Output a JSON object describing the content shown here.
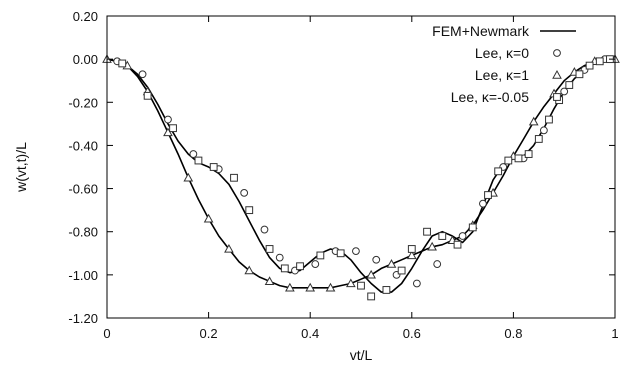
{
  "chart_data": {
    "type": "line",
    "title": "",
    "xlabel": "vt/L",
    "ylabel": "w(vt,t)/L",
    "xlim": [
      0,
      1
    ],
    "ylim": [
      -1.2,
      0.2
    ],
    "grid": false,
    "legend_position": "top-right",
    "x_ticks": [
      0,
      0.2,
      0.4,
      0.6,
      0.8,
      1
    ],
    "x_tick_labels": [
      "0",
      "0.2",
      "0.4",
      "0.6",
      "0.8",
      "1"
    ],
    "y_ticks": [
      0.2,
      0.0,
      -0.2,
      -0.4,
      -0.6,
      -0.8,
      -1.0,
      -1.2
    ],
    "y_tick_labels": [
      "0.20",
      "0.00",
      "-0.20",
      "-0.40",
      "-0.60",
      "-0.80",
      "-1.00",
      "-1.20"
    ],
    "series": [
      {
        "name": "FEM+Newmark",
        "marker": "none",
        "color": "#000000",
        "curves": [
          {
            "x": [
              0,
              0.02,
              0.04,
              0.06,
              0.08,
              0.1,
              0.12,
              0.14,
              0.16,
              0.18,
              0.2,
              0.22,
              0.24,
              0.26,
              0.28,
              0.3,
              0.32,
              0.34,
              0.36,
              0.38,
              0.4,
              0.42,
              0.44,
              0.46,
              0.48,
              0.5,
              0.52,
              0.54,
              0.56,
              0.58,
              0.6,
              0.62,
              0.64,
              0.66,
              0.68,
              0.7,
              0.72,
              0.74,
              0.76,
              0.78,
              0.8,
              0.82,
              0.84,
              0.86,
              0.88,
              0.9,
              0.92,
              0.94,
              0.96,
              0.98,
              1
            ],
            "y": [
              0,
              -0.01,
              -0.03,
              -0.07,
              -0.13,
              -0.21,
              -0.3,
              -0.38,
              -0.44,
              -0.48,
              -0.5,
              -0.53,
              -0.58,
              -0.66,
              -0.75,
              -0.84,
              -0.92,
              -0.97,
              -0.99,
              -0.98,
              -0.94,
              -0.9,
              -0.88,
              -0.89,
              -0.93,
              -0.99,
              -1.04,
              -1.08,
              -1.08,
              -1.04,
              -0.97,
              -0.89,
              -0.82,
              -0.8,
              -0.82,
              -0.85,
              -0.8,
              -0.68,
              -0.56,
              -0.49,
              -0.46,
              -0.45,
              -0.4,
              -0.32,
              -0.23,
              -0.15,
              -0.09,
              -0.05,
              -0.02,
              -0.01,
              0
            ]
          },
          {
            "x": [
              0,
              0.02,
              0.04,
              0.06,
              0.08,
              0.1,
              0.12,
              0.14,
              0.16,
              0.18,
              0.2,
              0.22,
              0.24,
              0.26,
              0.28,
              0.3,
              0.32,
              0.34,
              0.36,
              0.38,
              0.4,
              0.42,
              0.44,
              0.46,
              0.48,
              0.5,
              0.52,
              0.54,
              0.56,
              0.58,
              0.6,
              0.62,
              0.64,
              0.66,
              0.68,
              0.7,
              0.72,
              0.74,
              0.76,
              0.78,
              0.8,
              0.82,
              0.84,
              0.86,
              0.88,
              0.9,
              0.92,
              0.94,
              0.96,
              0.98,
              1
            ],
            "y": [
              0,
              -0.01,
              -0.03,
              -0.08,
              -0.15,
              -0.24,
              -0.34,
              -0.44,
              -0.55,
              -0.65,
              -0.74,
              -0.82,
              -0.88,
              -0.94,
              -0.98,
              -1.01,
              -1.03,
              -1.05,
              -1.06,
              -1.06,
              -1.06,
              -1.06,
              -1.06,
              -1.05,
              -1.04,
              -1.02,
              -1.0,
              -0.97,
              -0.95,
              -0.93,
              -0.91,
              -0.89,
              -0.87,
              -0.86,
              -0.84,
              -0.82,
              -0.77,
              -0.7,
              -0.62,
              -0.54,
              -0.45,
              -0.37,
              -0.29,
              -0.22,
              -0.16,
              -0.1,
              -0.06,
              -0.03,
              -0.01,
              0,
              0
            ]
          }
        ]
      },
      {
        "name": "Lee, κ=0",
        "marker": "circle",
        "x": [
          0.02,
          0.07,
          0.12,
          0.17,
          0.22,
          0.27,
          0.31,
          0.34,
          0.37,
          0.41,
          0.45,
          0.49,
          0.53,
          0.57,
          0.61,
          0.65,
          0.7,
          0.74,
          0.78,
          0.82,
          0.86,
          0.9,
          0.94,
          0.98
        ],
        "y": [
          -0.01,
          -0.07,
          -0.28,
          -0.44,
          -0.51,
          -0.62,
          -0.79,
          -0.92,
          -0.98,
          -0.95,
          -0.89,
          -0.89,
          -0.93,
          -1.0,
          -1.04,
          -0.95,
          -0.82,
          -0.67,
          -0.5,
          -0.46,
          -0.33,
          -0.15,
          -0.05,
          0.0
        ]
      },
      {
        "name": "Lee, κ=1",
        "marker": "triangle",
        "x": [
          0,
          0.04,
          0.08,
          0.12,
          0.16,
          0.2,
          0.24,
          0.28,
          0.32,
          0.36,
          0.4,
          0.44,
          0.48,
          0.52,
          0.56,
          0.6,
          0.64,
          0.68,
          0.72,
          0.76,
          0.8,
          0.84,
          0.88,
          0.92,
          0.96,
          1.0
        ],
        "y": [
          0,
          -0.03,
          -0.15,
          -0.34,
          -0.55,
          -0.74,
          -0.88,
          -0.98,
          -1.03,
          -1.06,
          -1.06,
          -1.06,
          -1.04,
          -1.0,
          -0.95,
          -0.91,
          -0.87,
          -0.84,
          -0.77,
          -0.62,
          -0.45,
          -0.29,
          -0.16,
          -0.06,
          -0.01,
          0
        ]
      },
      {
        "name": "Lee, κ=-0.05",
        "marker": "square",
        "x": [
          0.03,
          0.08,
          0.13,
          0.18,
          0.21,
          0.25,
          0.28,
          0.32,
          0.35,
          0.38,
          0.42,
          0.46,
          0.5,
          0.52,
          0.55,
          0.58,
          0.6,
          0.63,
          0.66,
          0.69,
          0.72,
          0.75,
          0.77,
          0.79,
          0.81,
          0.83,
          0.85,
          0.87,
          0.89,
          0.91,
          0.93,
          0.95,
          0.97,
          0.99
        ],
        "y": [
          -0.02,
          -0.17,
          -0.32,
          -0.47,
          -0.5,
          -0.55,
          -0.7,
          -0.88,
          -0.97,
          -0.96,
          -0.91,
          -0.9,
          -1.05,
          -1.1,
          -1.07,
          -0.98,
          -0.88,
          -0.8,
          -0.82,
          -0.86,
          -0.78,
          -0.63,
          -0.52,
          -0.47,
          -0.46,
          -0.44,
          -0.37,
          -0.28,
          -0.19,
          -0.12,
          -0.07,
          -0.03,
          -0.01,
          0.0
        ]
      }
    ]
  }
}
